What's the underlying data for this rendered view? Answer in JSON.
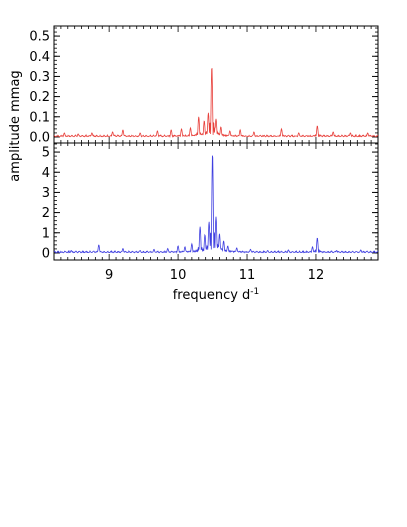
{
  "chart_data": [
    {
      "type": "line",
      "panel": "top",
      "series_color": "#e8413c",
      "ylim": [
        -0.03,
        0.55
      ],
      "xlim": [
        8.2,
        12.9
      ],
      "ytick_labels": [
        "0.0",
        "0.1",
        "0.2",
        "0.3",
        "0.4",
        "0.5"
      ],
      "ytick_values": [
        0,
        0.1,
        0.2,
        0.3,
        0.4,
        0.5
      ],
      "peaks": [
        {
          "x": 8.35,
          "y": 0.02
        },
        {
          "x": 8.55,
          "y": 0.015
        },
        {
          "x": 8.75,
          "y": 0.02
        },
        {
          "x": 9.05,
          "y": 0.025
        },
        {
          "x": 9.2,
          "y": 0.035
        },
        {
          "x": 9.45,
          "y": 0.02
        },
        {
          "x": 9.7,
          "y": 0.03
        },
        {
          "x": 9.9,
          "y": 0.035
        },
        {
          "x": 10.05,
          "y": 0.04
        },
        {
          "x": 10.18,
          "y": 0.045
        },
        {
          "x": 10.3,
          "y": 0.1
        },
        {
          "x": 10.38,
          "y": 0.08
        },
        {
          "x": 10.44,
          "y": 0.12
        },
        {
          "x": 10.49,
          "y": 0.35
        },
        {
          "x": 10.55,
          "y": 0.09
        },
        {
          "x": 10.62,
          "y": 0.05
        },
        {
          "x": 10.75,
          "y": 0.03
        },
        {
          "x": 10.9,
          "y": 0.035
        },
        {
          "x": 11.1,
          "y": 0.025
        },
        {
          "x": 11.5,
          "y": 0.04
        },
        {
          "x": 11.75,
          "y": 0.02
        },
        {
          "x": 12.02,
          "y": 0.055
        },
        {
          "x": 12.25,
          "y": 0.025
        },
        {
          "x": 12.5,
          "y": 0.02
        },
        {
          "x": 12.75,
          "y": 0.02
        }
      ]
    },
    {
      "type": "line",
      "panel": "bottom",
      "series_color": "#3f3fe0",
      "xlabel": "frequency d",
      "xlabel_superscript": "-1",
      "ylim": [
        -0.35,
        5.45
      ],
      "xlim": [
        8.2,
        12.9
      ],
      "xtick_values": [
        9,
        10,
        11,
        12
      ],
      "xtick_labels": [
        "9",
        "10",
        "11",
        "12"
      ],
      "ytick_labels": [
        "0",
        "1",
        "2",
        "3",
        "4",
        "5"
      ],
      "ytick_values": [
        0,
        1,
        2,
        3,
        4,
        5
      ],
      "peaks": [
        {
          "x": 8.45,
          "y": 0.12
        },
        {
          "x": 8.85,
          "y": 0.4
        },
        {
          "x": 9.2,
          "y": 0.22
        },
        {
          "x": 9.45,
          "y": 0.12
        },
        {
          "x": 9.65,
          "y": 0.18
        },
        {
          "x": 9.85,
          "y": 0.22
        },
        {
          "x": 10.0,
          "y": 0.35
        },
        {
          "x": 10.1,
          "y": 0.3
        },
        {
          "x": 10.2,
          "y": 0.45
        },
        {
          "x": 10.32,
          "y": 1.3
        },
        {
          "x": 10.39,
          "y": 0.9
        },
        {
          "x": 10.45,
          "y": 1.55
        },
        {
          "x": 10.5,
          "y": 4.95
        },
        {
          "x": 10.55,
          "y": 1.8
        },
        {
          "x": 10.6,
          "y": 0.95
        },
        {
          "x": 10.66,
          "y": 0.6
        },
        {
          "x": 10.72,
          "y": 0.35
        },
        {
          "x": 10.85,
          "y": 0.25
        },
        {
          "x": 11.05,
          "y": 0.18
        },
        {
          "x": 11.3,
          "y": 0.12
        },
        {
          "x": 11.6,
          "y": 0.15
        },
        {
          "x": 11.95,
          "y": 0.3
        },
        {
          "x": 12.02,
          "y": 0.75
        },
        {
          "x": 12.3,
          "y": 0.12
        },
        {
          "x": 12.65,
          "y": 0.15
        }
      ]
    }
  ],
  "shared": {
    "ylabel": "amplitude mmag"
  }
}
